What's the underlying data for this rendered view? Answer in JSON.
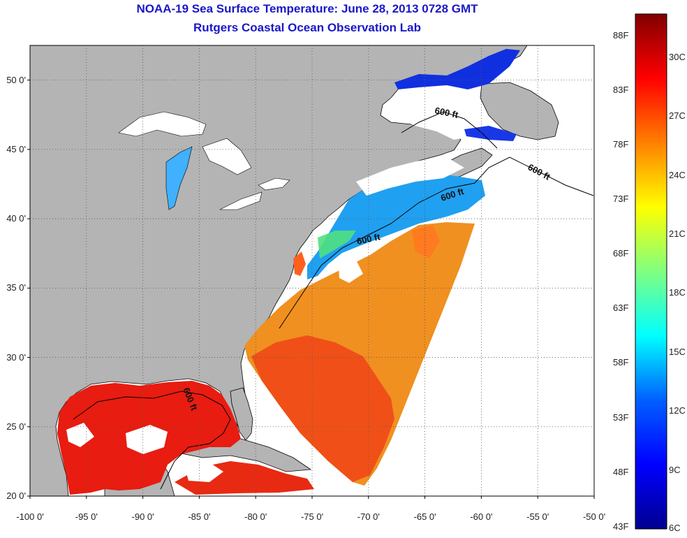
{
  "title": "NOAA-19 Sea Surface Temperature:  June 28, 2013 0728 GMT",
  "subtitle": "Rutgers Coastal Ocean Observation Lab",
  "map": {
    "lon_range": [
      -100,
      -50
    ],
    "lat_range": [
      20,
      52.5
    ],
    "grid": "dotted",
    "lat_ticks": [
      {
        "value": 50,
        "label": "50 0'"
      },
      {
        "value": 45,
        "label": "45 0'"
      },
      {
        "value": 40,
        "label": "40 0'"
      },
      {
        "value": 35,
        "label": "35 0'"
      },
      {
        "value": 30,
        "label": "30 0'"
      },
      {
        "value": 25,
        "label": "25 0'"
      },
      {
        "value": 20,
        "label": "20 0'"
      }
    ],
    "lon_ticks": [
      {
        "value": -100,
        "label": "-100 0'"
      },
      {
        "value": -95,
        "label": "-95 0'"
      },
      {
        "value": -90,
        "label": "-90 0'"
      },
      {
        "value": -85,
        "label": "-85 0'"
      },
      {
        "value": -80,
        "label": "-80 0'"
      },
      {
        "value": -75,
        "label": "-75 0'"
      },
      {
        "value": -70,
        "label": "-70 0'"
      },
      {
        "value": -65,
        "label": "-65 0'"
      },
      {
        "value": -60,
        "label": "-60 0'"
      },
      {
        "value": -55,
        "label": "-55 0'"
      },
      {
        "value": -50,
        "label": "-50 0'"
      }
    ],
    "contour_label": "600 ft",
    "colors": {
      "land": "#b4b4b4",
      "no_data": "#ffffff",
      "coastline": "#000000"
    }
  },
  "colorbar": {
    "temp_range_c": [
      6,
      32.2
    ],
    "fahrenheit_labels": [
      "88F",
      "83F",
      "78F",
      "73F",
      "68F",
      "63F",
      "58F",
      "53F",
      "48F",
      "43F"
    ],
    "celsius_labels": [
      "30C",
      "27C",
      "24C",
      "21C",
      "18C",
      "15C",
      "12C",
      "9C",
      "6C"
    ],
    "colormap": [
      "#00008f",
      "#0000ff",
      "#0080ff",
      "#00ffff",
      "#80ff80",
      "#ffff00",
      "#ff8000",
      "#ff0000",
      "#800000"
    ]
  }
}
